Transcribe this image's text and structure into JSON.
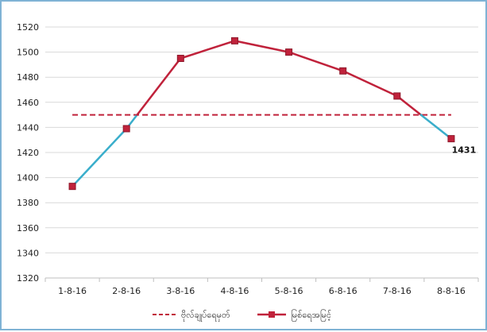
{
  "chart_data": {
    "type": "line",
    "title": "",
    "xlabel": "",
    "ylabel": "",
    "categories": [
      "1-8-16",
      "2-8-16",
      "3-8-16",
      "4-8-16",
      "5-8-16",
      "6-8-16",
      "7-8-16",
      "8-8-16"
    ],
    "ylim": [
      1320,
      1520
    ],
    "yticks": [
      1320,
      1340,
      1360,
      1380,
      1400,
      1420,
      1440,
      1460,
      1480,
      1500,
      1520
    ],
    "grid": true,
    "legend_position": "bottom",
    "series": [
      {
        "name": "ဗိုလ်ချုပ်ရေမှတ်",
        "style": "dashed",
        "color": "#c0223b",
        "values": [
          1450,
          1450,
          1450,
          1450,
          1450,
          1450,
          1450,
          1450
        ]
      },
      {
        "name": "မြစ်ရေအမြင့်",
        "style": "solid-markers",
        "color": "#c0223b",
        "below_threshold_color": "#3aaecb",
        "values": [
          1393,
          1439,
          1495,
          1509,
          1500,
          1485,
          1465,
          1431
        ]
      }
    ],
    "annotations": [
      {
        "category": "8-8-16",
        "text": "1431"
      }
    ]
  }
}
